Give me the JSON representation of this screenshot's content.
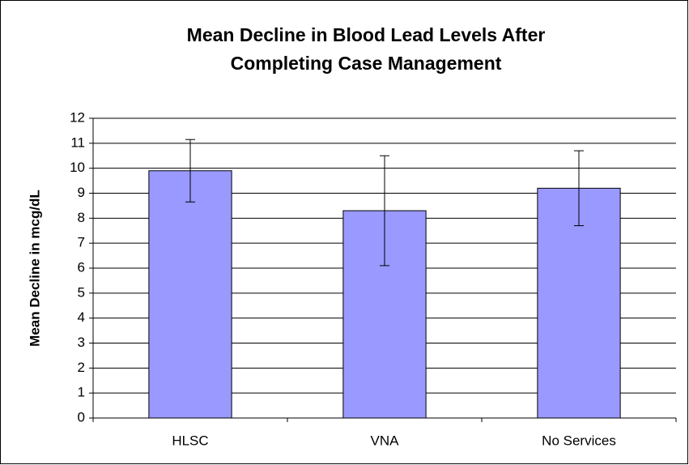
{
  "chart_data": {
    "type": "bar",
    "title": [
      "Mean Decline in Blood Lead Levels After",
      "Completing Case Management"
    ],
    "y_label": "Mean Decline in mcg/dL",
    "categories": [
      "HLSC",
      "VNA",
      "No Services"
    ],
    "values": [
      9.9,
      8.3,
      9.2
    ],
    "errors": [
      1.25,
      2.2,
      1.5
    ],
    "color": "#9999ff",
    "ylim": [
      0,
      12
    ],
    "yticks": [
      0,
      1,
      2,
      3,
      4,
      5,
      6,
      7,
      8,
      9,
      10,
      11,
      12
    ],
    "grid": true
  }
}
